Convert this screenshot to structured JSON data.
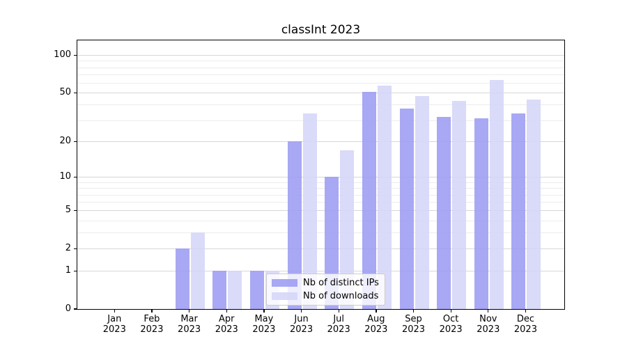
{
  "chart_data": {
    "type": "bar",
    "title": "classInt 2023",
    "categories": [
      "Jan 2023",
      "Feb 2023",
      "Mar 2023",
      "Apr 2023",
      "May 2023",
      "Jun 2023",
      "Jul 2023",
      "Aug 2023",
      "Sep 2023",
      "Oct 2023",
      "Nov 2023",
      "Dec 2023"
    ],
    "series": [
      {
        "name": "Nb of distinct IPs",
        "color": "#9c9cf2",
        "values": [
          0,
          0,
          2,
          1,
          1,
          20,
          10,
          51,
          37,
          32,
          31,
          34
        ]
      },
      {
        "name": "Nb of downloads",
        "color": "#d5d5f8",
        "values": [
          0,
          0,
          3,
          1,
          1,
          34,
          17,
          57,
          47,
          43,
          63,
          44
        ]
      }
    ],
    "bar_alpha": 0.88,
    "yscale": "log10(value+1)",
    "xlabel": "",
    "ylabel": "",
    "y_ticks": [
      0,
      1,
      2,
      5,
      10,
      20,
      50,
      100
    ],
    "y_minor_grid": [
      3,
      4,
      6,
      7,
      8,
      9,
      30,
      40,
      60,
      70,
      80,
      90
    ],
    "ylim": [
      0,
      131
    ],
    "grid": "horizontal, major and log-minor lines",
    "legend_position": "bottom, left of center, overlapping May bars"
  },
  "colors": {
    "bar_dark_composite": "#a8a8f4",
    "bar_light_composite": "#dadaf9",
    "grid_major": "#d7d7d7",
    "grid_minor": "#ececec",
    "axis": "#000000",
    "legend_border": "#cccccc",
    "background": "#ffffff"
  }
}
